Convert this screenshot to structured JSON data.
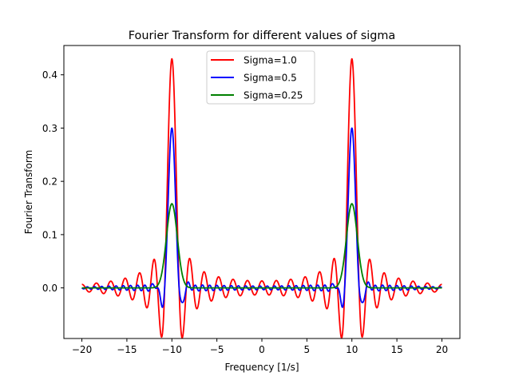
{
  "chart_data": {
    "type": "line",
    "title": "Fourier Transform for different values of sigma",
    "xlabel": "Frequency [1/s]",
    "ylabel": "Fourier Transform",
    "xlim": [
      -22,
      22
    ],
    "ylim": [
      -0.095,
      0.455
    ],
    "xticks": [
      -20,
      -15,
      -10,
      -5,
      0,
      5,
      10,
      15,
      20
    ],
    "xtick_labels": [
      "−20",
      "−15",
      "−10",
      "−5",
      "0",
      "5",
      "10",
      "15",
      "20"
    ],
    "yticks": [
      0.0,
      0.1,
      0.2,
      0.3,
      0.4
    ],
    "ytick_labels": [
      "0.0",
      "0.1",
      "0.2",
      "0.3",
      "0.4"
    ],
    "grid": false,
    "legend_position": "upper center",
    "x": {
      "start": -20,
      "end": 20,
      "step": 0.02
    },
    "series": [
      {
        "name": "Sigma=1.0",
        "color": "#ff0000",
        "peak_frequency": 10,
        "peak_value": 0.43,
        "min_value": -0.065
      },
      {
        "name": "Sigma=0.5",
        "color": "#0000ff",
        "peak_frequency": 10,
        "peak_value": 0.3,
        "min_value": -0.01
      },
      {
        "name": "Sigma=0.25",
        "color": "#008000",
        "peak_frequency": 10,
        "peak_value": 0.158,
        "min_value": 0.0
      }
    ]
  }
}
